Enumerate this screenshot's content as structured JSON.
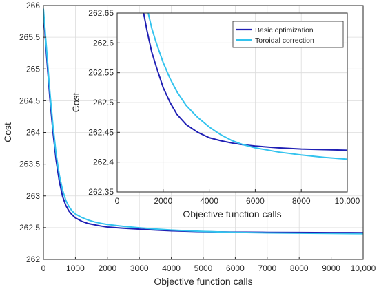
{
  "chart_data": [
    {
      "id": "main",
      "type": "line",
      "xlabel": "Objective function calls",
      "ylabel": "Cost",
      "xlim": [
        0,
        10000
      ],
      "ylim": [
        262,
        266
      ],
      "xticks": [
        0,
        1000,
        2000,
        3000,
        4000,
        5000,
        6000,
        7000,
        8000,
        9000,
        10000
      ],
      "xtick_labels": [
        "0",
        "1000",
        "2000",
        "3000",
        "4000",
        "5000",
        "6000",
        "7000",
        "8000",
        "9000",
        "10,000"
      ],
      "yticks": [
        262,
        262.5,
        263,
        263.5,
        264,
        264.5,
        265,
        265.5,
        266
      ],
      "ytick_labels": [
        "262",
        "262.5",
        "263",
        "263.5",
        "264",
        "264.5",
        "265",
        "265.5",
        "266"
      ],
      "grid": true,
      "series": [
        {
          "name": "Basic optimization",
          "color": "#1f1fb4",
          "x": [
            0,
            100,
            200,
            300,
            400,
            500,
            600,
            700,
            800,
            900,
            1000,
            1200,
            1400,
            1600,
            1800,
            2000,
            2500,
            3000,
            3500,
            4000,
            5000,
            6000,
            7000,
            8000,
            9000,
            10000
          ],
          "y": [
            265.9,
            265.2,
            264.55,
            264.0,
            263.55,
            263.22,
            262.99,
            262.85,
            262.76,
            262.7,
            262.655,
            262.6,
            262.565,
            262.545,
            262.525,
            262.51,
            262.49,
            262.475,
            262.462,
            262.45,
            262.437,
            262.43,
            262.426,
            262.424,
            262.422,
            262.42
          ]
        },
        {
          "name": "Toroidal correction",
          "color": "#33c3ee",
          "x": [
            0,
            100,
            200,
            300,
            400,
            500,
            600,
            700,
            800,
            900,
            1000,
            1200,
            1400,
            1600,
            1800,
            2000,
            2500,
            3000,
            3500,
            4000,
            5000,
            6000,
            7000,
            8000,
            9000,
            10000
          ],
          "y": [
            265.95,
            265.3,
            264.65,
            264.1,
            263.65,
            263.32,
            263.09,
            262.93,
            262.83,
            262.76,
            262.715,
            262.66,
            262.62,
            262.59,
            262.568,
            262.55,
            262.52,
            262.498,
            262.478,
            262.462,
            262.44,
            262.426,
            262.418,
            262.413,
            262.409,
            262.405
          ]
        }
      ]
    },
    {
      "id": "inset",
      "type": "line",
      "xlabel": "Objective function calls",
      "ylabel": "Cost",
      "xlim": [
        0,
        10000
      ],
      "ylim": [
        262.35,
        262.65
      ],
      "xticks": [
        0,
        2000,
        4000,
        6000,
        8000,
        10000
      ],
      "xtick_labels": [
        "0",
        "2000",
        "4000",
        "6000",
        "8000",
        "10,000"
      ],
      "yticks": [
        262.35,
        262.4,
        262.45,
        262.5,
        262.55,
        262.6,
        262.65
      ],
      "ytick_labels": [
        "262.35",
        "262.4",
        "262.45",
        "262.5",
        "262.55",
        "262.6",
        "262.65"
      ],
      "grid": true,
      "legend": {
        "placement": "top-right",
        "entries": [
          "Basic optimization",
          "Toroidal correction"
        ]
      },
      "series": [
        {
          "name": "Basic optimization",
          "color": "#1f1fb4",
          "x": [
            1150,
            1300,
            1500,
            1700,
            2000,
            2300,
            2600,
            3000,
            3500,
            4000,
            4500,
            5000,
            5500,
            6000,
            7000,
            8000,
            9000,
            10000
          ],
          "y": [
            262.65,
            262.62,
            262.585,
            262.56,
            262.525,
            262.5,
            262.48,
            262.463,
            262.45,
            262.441,
            262.436,
            262.432,
            262.429,
            262.427,
            262.424,
            262.422,
            262.421,
            262.42
          ]
        },
        {
          "name": "Toroidal correction",
          "color": "#33c3ee",
          "x": [
            1350,
            1500,
            1700,
            2000,
            2300,
            2600,
            3000,
            3500,
            4000,
            4500,
            5000,
            5500,
            6000,
            7000,
            8000,
            9000,
            10000
          ],
          "y": [
            262.65,
            262.625,
            262.6,
            262.567,
            262.54,
            262.518,
            262.495,
            262.475,
            262.459,
            262.446,
            262.436,
            262.429,
            262.424,
            262.417,
            262.412,
            262.408,
            262.405
          ]
        }
      ]
    }
  ]
}
